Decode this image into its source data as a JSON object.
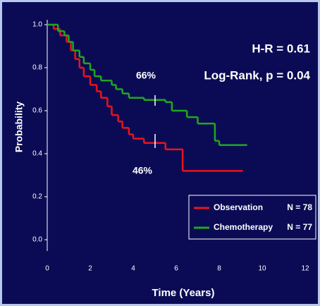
{
  "chart_data": {
    "type": "step",
    "ylabel": "Probability",
    "xlabel": "Time (Years)",
    "annotations": [
      "H-R = 0.61",
      "Log-Rank, p = 0.04",
      "66%",
      "46%"
    ],
    "xlim": [
      0,
      12
    ],
    "xticks": [
      0,
      2,
      4,
      6,
      8,
      10,
      12
    ],
    "ylim": [
      0,
      1
    ],
    "yticks": [
      {
        "value": 0,
        "label": "0.0"
      },
      0.2,
      0.4,
      0.6,
      0.8,
      {
        "value": 1,
        "label": "1.0"
      }
    ],
    "series": [
      {
        "name": "Observation",
        "n_label": "N = 78",
        "color": "#e8141c",
        "x": [
          0,
          0.3,
          0.6,
          0.9,
          1.1,
          1.3,
          1.5,
          1.7,
          2.0,
          2.3,
          2.5,
          2.8,
          3.0,
          3.3,
          3.5,
          3.8,
          4.0,
          4.5,
          5.5,
          6.3,
          9.1
        ],
        "values": [
          1.0,
          0.98,
          0.95,
          0.92,
          0.88,
          0.84,
          0.8,
          0.76,
          0.72,
          0.69,
          0.66,
          0.62,
          0.58,
          0.55,
          0.52,
          0.49,
          0.47,
          0.45,
          0.42,
          0.32,
          0.32
        ]
      },
      {
        "name": "Chemotherapy",
        "n_label": "N = 77",
        "color": "#1ea81e",
        "x": [
          0,
          0.5,
          0.8,
          1.0,
          1.2,
          1.5,
          1.7,
          2.0,
          2.2,
          2.5,
          3.0,
          3.2,
          3.5,
          3.8,
          4.5,
          5.5,
          5.8,
          6.5,
          7.0,
          7.8,
          8.0,
          9.3
        ],
        "values": [
          1.0,
          0.97,
          0.95,
          0.92,
          0.88,
          0.85,
          0.82,
          0.79,
          0.76,
          0.74,
          0.72,
          0.7,
          0.68,
          0.66,
          0.65,
          0.64,
          0.6,
          0.57,
          0.54,
          0.46,
          0.44,
          0.44
        ]
      }
    ]
  }
}
